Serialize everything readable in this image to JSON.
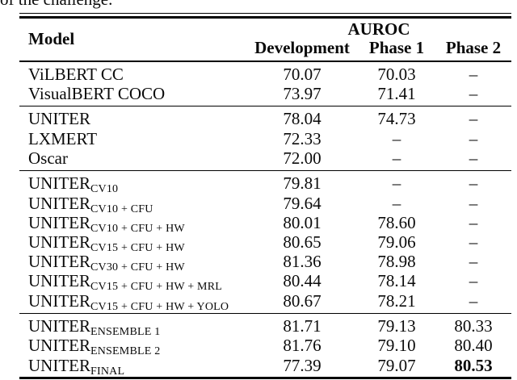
{
  "context_text": "of the challenge.",
  "table": {
    "header": {
      "model": "Model",
      "group": "AUROC",
      "columns": [
        "Development",
        "Phase 1",
        "Phase 2"
      ]
    },
    "groups": [
      {
        "rows": [
          {
            "model": "ViLBERT CC",
            "sub": "",
            "dev": "70.07",
            "p1": "70.03",
            "p2": "–"
          },
          {
            "model": "VisualBERT COCO",
            "sub": "",
            "dev": "73.97",
            "p1": "71.41",
            "p2": "–"
          }
        ]
      },
      {
        "rows": [
          {
            "model": "UNITER",
            "sub": "",
            "dev": "78.04",
            "p1": "74.73",
            "p2": "–"
          },
          {
            "model": "LXMERT",
            "sub": "",
            "dev": "72.33",
            "p1": "–",
            "p2": "–"
          },
          {
            "model": "Oscar",
            "sub": "",
            "dev": "72.00",
            "p1": "–",
            "p2": "–"
          }
        ]
      },
      {
        "rows": [
          {
            "model": "UNITER",
            "sub": "CV10",
            "dev": "79.81",
            "p1": "–",
            "p2": "–"
          },
          {
            "model": "UNITER",
            "sub": "CV10 + CFU",
            "dev": "79.64",
            "p1": "–",
            "p2": "–"
          },
          {
            "model": "UNITER",
            "sub": "CV10 + CFU + HW",
            "dev": "80.01",
            "p1": "78.60",
            "p2": "–"
          },
          {
            "model": "UNITER",
            "sub": "CV15 + CFU + HW",
            "dev": "80.65",
            "p1": "79.06",
            "p2": "–"
          },
          {
            "model": "UNITER",
            "sub": "CV30 + CFU + HW",
            "dev": "81.36",
            "p1": "78.98",
            "p2": "–"
          },
          {
            "model": "UNITER",
            "sub": "CV15 + CFU + HW + MRL",
            "dev": "80.44",
            "p1": "78.14",
            "p2": "–"
          },
          {
            "model": "UNITER",
            "sub": "CV15 + CFU + HW + YOLO",
            "dev": "80.67",
            "p1": "78.21",
            "p2": "–"
          }
        ]
      },
      {
        "rows": [
          {
            "model": "UNITER",
            "sub": "ENSEMBLE 1",
            "dev": "81.71",
            "p1": "79.13",
            "p2": "80.33"
          },
          {
            "model": "UNITER",
            "sub": "ENSEMBLE 2",
            "dev": "81.76",
            "p1": "79.10",
            "p2": "80.40"
          },
          {
            "model": "UNITER",
            "sub": "FINAL",
            "dev": "77.39",
            "p1": "79.07",
            "p2": "80.53"
          }
        ]
      }
    ]
  }
}
